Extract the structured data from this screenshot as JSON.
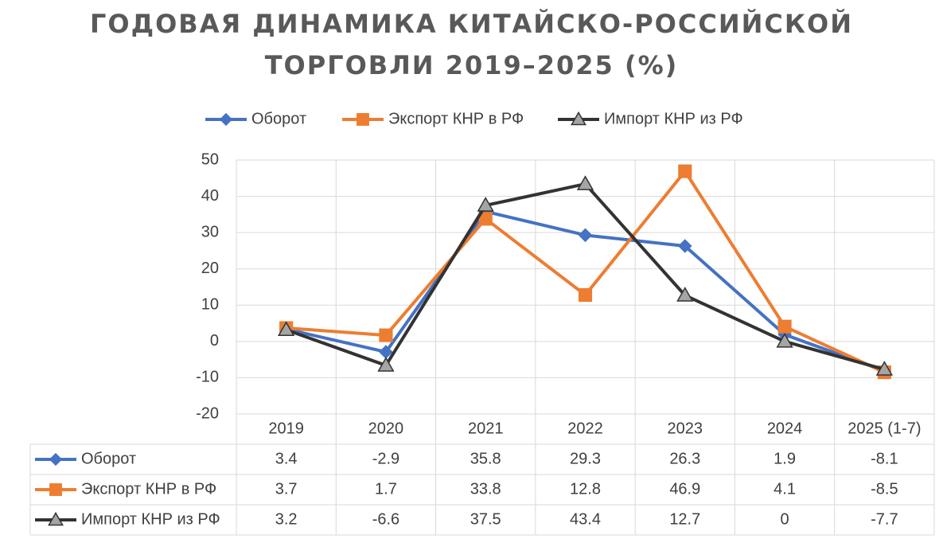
{
  "chart_data": {
    "type": "line",
    "title_lines": [
      "ГОДОВАЯ ДИНАМИКА КИТАЙСКО-РОССИЙСКОЙ",
      "ТОРГОВЛИ 2019–2025 (%)"
    ],
    "categories": [
      "2019",
      "2020",
      "2021",
      "2022",
      "2023",
      "2024",
      "2025 (1-7)"
    ],
    "y_ticks": [
      "50",
      "40",
      "30",
      "20",
      "10",
      "0",
      "-10",
      "-20"
    ],
    "ylim": [
      -20,
      50
    ],
    "grid": true,
    "legend_position": "top",
    "data_table": true,
    "series": [
      {
        "name": "Оборот",
        "color": "#4472C4",
        "marker": "diamond",
        "values": [
          3.4,
          -2.9,
          35.8,
          29.3,
          26.3,
          1.9,
          -8.1
        ],
        "labels": [
          "3.4",
          "-2.9",
          "35.8",
          "29.3",
          "26.3",
          "1.9",
          "-8.1"
        ]
      },
      {
        "name": "Экспорт КНР в РФ",
        "color": "#ED7D31",
        "marker": "square",
        "values": [
          3.7,
          1.7,
          33.8,
          12.8,
          46.9,
          4.1,
          -8.5
        ],
        "labels": [
          "3.7",
          "1.7",
          "33.8",
          "12.8",
          "46.9",
          "4.1",
          "-8.5"
        ]
      },
      {
        "name": "Импорт КНР из РФ",
        "color": "#333333",
        "marker": "triangle",
        "values": [
          3.2,
          -6.6,
          37.5,
          43.4,
          12.7,
          0,
          -7.7
        ],
        "labels": [
          "3.2",
          "-6.6",
          "37.5",
          "43.4",
          "12.7",
          "0",
          "-7.7"
        ]
      }
    ]
  }
}
